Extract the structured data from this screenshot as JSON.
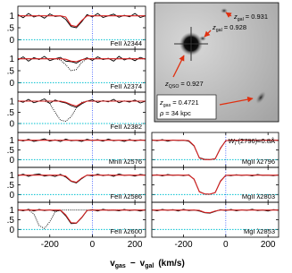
{
  "chart_data": {
    "type": "line",
    "xlabel": {
      "v1": "v",
      "sub1": "gas",
      "minus": "−",
      "v2": "v",
      "sub2": "gal",
      "unit": "(km/s)"
    },
    "xlim": [
      -350,
      250
    ],
    "xticks": [
      -200,
      0,
      200
    ],
    "ylim": [
      -0.4,
      1.4
    ],
    "yticks": [
      0,
      {
        "value": 0.5,
        "label": ".5"
      },
      1
    ],
    "flux_color": "#000000",
    "model_color": "#d62020",
    "zero_color": "#00c0d0",
    "v0_color": "#3050ff",
    "x": [
      -350,
      -325,
      -300,
      -275,
      -250,
      -225,
      -200,
      -175,
      -150,
      -125,
      -100,
      -75,
      -50,
      -25,
      0,
      25,
      50,
      75,
      100,
      125,
      150,
      175,
      200,
      225,
      250
    ],
    "panels": [
      {
        "label": "FeII λ2344",
        "flux": [
          1.05,
          0.92,
          1.1,
          0.95,
          1.02,
          0.9,
          1.08,
          0.97,
          1.0,
          0.85,
          0.55,
          0.5,
          0.75,
          1.05,
          0.95,
          1.1,
          0.93,
          1.0,
          1.07,
          0.94,
          1.02,
          0.96,
          1.1,
          0.93,
          1.0
        ],
        "model": [
          1,
          1,
          1,
          1,
          1,
          1,
          1,
          1,
          1,
          0.95,
          0.6,
          0.55,
          0.8,
          1,
          1,
          1,
          1,
          1,
          1,
          1,
          1,
          1,
          1,
          1,
          1
        ]
      },
      {
        "label": "FeII λ2374",
        "flux": [
          0.95,
          1.08,
          0.9,
          1.05,
          0.97,
          1.1,
          0.92,
          1.0,
          1.06,
          0.9,
          0.88,
          0.82,
          0.95,
          1.04,
          0.93,
          1.08,
          0.97,
          1.02,
          0.9,
          1.1,
          0.95,
          1.03,
          0.92,
          1.06,
          0.98
        ],
        "model": [
          1,
          1,
          1,
          1,
          1,
          1,
          1,
          1,
          1,
          0.98,
          0.9,
          0.88,
          0.96,
          1,
          1,
          1,
          1,
          1,
          1,
          1,
          1,
          1,
          1,
          1,
          1
        ],
        "other": [
          1,
          1,
          1,
          1,
          1,
          1,
          1,
          1,
          0.95,
          0.75,
          0.5,
          0.55,
          0.85,
          1,
          1,
          1,
          1,
          1,
          1,
          1,
          1,
          1,
          1,
          1,
          1
        ]
      },
      {
        "label": "FeII λ2382",
        "flux": [
          1.02,
          0.95,
          1.08,
          0.93,
          1.0,
          1.1,
          0.9,
          1.05,
          0.97,
          0.92,
          0.8,
          0.72,
          0.88,
          1.0,
          1.06,
          0.94,
          1.02,
          0.97,
          1.08,
          0.93,
          1.01,
          0.96,
          1.05,
          0.92,
          1.0
        ],
        "model": [
          1,
          1,
          1,
          1,
          1,
          1,
          1,
          1,
          1,
          0.95,
          0.85,
          0.78,
          0.92,
          1,
          1,
          1,
          1,
          1,
          1,
          1,
          1,
          1,
          1,
          1,
          1
        ],
        "other": [
          1,
          1,
          1,
          1,
          1,
          1,
          0.9,
          0.5,
          0.15,
          0.1,
          0.3,
          0.7,
          0.95,
          1,
          1,
          1,
          1,
          1,
          1,
          1,
          1,
          1,
          1,
          1,
          1
        ]
      },
      {
        "label": "MnII λ2576",
        "flux": [
          1.03,
          0.96,
          1.05,
          0.94,
          1.0,
          1.07,
          0.95,
          1.02,
          0.93,
          1.06,
          0.97,
          1.0,
          0.94,
          1.05,
          0.98,
          1.03,
          0.95,
          1.06,
          0.97,
          1.01,
          0.94,
          1.04,
          0.96,
          1.02,
          0.99
        ],
        "model": [
          1,
          1,
          1,
          1,
          1,
          1,
          1,
          1,
          1,
          1,
          1,
          1,
          1,
          1,
          1,
          1,
          1,
          1,
          1,
          1,
          1,
          1,
          1,
          1,
          1
        ]
      },
      {
        "label": "FeII λ2586",
        "flux": [
          0.97,
          1.05,
          0.94,
          1.02,
          1.06,
          0.95,
          1.0,
          0.93,
          1.04,
          0.9,
          0.68,
          0.6,
          0.82,
          1.0,
          0.96,
          1.05,
          0.97,
          1.02,
          0.94,
          1.06,
          0.98,
          1.01,
          0.95,
          1.04,
          1.0
        ],
        "model": [
          1,
          1,
          1,
          1,
          1,
          1,
          1,
          1,
          1,
          0.95,
          0.7,
          0.63,
          0.85,
          1,
          1,
          1,
          1,
          1,
          1,
          1,
          1,
          1,
          1,
          1,
          1
        ]
      },
      {
        "label": "FeII λ2600",
        "flux": [
          1.02,
          0.96,
          1.04,
          0.95,
          1.03,
          0.97,
          1.01,
          0.94,
          0.98,
          0.7,
          0.3,
          0.32,
          0.6,
          0.97,
          1.02,
          0.95,
          1.04,
          0.98,
          1.0,
          0.96,
          1.03,
          0.97,
          1.01,
          0.95,
          1.02
        ],
        "model": [
          1,
          1,
          1,
          1,
          1,
          1,
          1,
          1,
          1,
          0.75,
          0.35,
          0.33,
          0.62,
          0.98,
          1,
          1,
          1,
          1,
          1,
          1,
          1,
          1,
          1,
          1,
          1
        ],
        "other": [
          1,
          1,
          1,
          0.8,
          0.2,
          0.05,
          0.4,
          0.9,
          1,
          1,
          1,
          1,
          1,
          1,
          1,
          1,
          1,
          1,
          1,
          1,
          1,
          1,
          1,
          1,
          1
        ]
      },
      {
        "label": "MgII λ2796",
        "note": {
          "sym": "W",
          "sub": "r",
          "rest": "(2796)=0.8Å"
        },
        "flux": [
          1.02,
          0.97,
          1.03,
          0.95,
          1.01,
          0.98,
          1.0,
          0.95,
          0.7,
          0.1,
          0.02,
          0.0,
          0.05,
          0.6,
          0.97,
          1.02,
          0.96,
          1.03,
          0.98,
          1.0,
          0.97,
          1.02,
          0.99,
          1.01,
          0.98
        ],
        "model": [
          1,
          1,
          1,
          1,
          1,
          1,
          1,
          0.98,
          0.72,
          0.08,
          0,
          0,
          0.04,
          0.58,
          0.98,
          1,
          1,
          1,
          1,
          1,
          1,
          1,
          1,
          1,
          1
        ]
      },
      {
        "label": "MgII λ2803",
        "flux": [
          0.98,
          1.02,
          0.96,
          1.03,
          0.99,
          1.01,
          0.97,
          1.02,
          0.78,
          0.15,
          0.03,
          0.02,
          0.1,
          0.7,
          0.99,
          0.97,
          1.02,
          0.98,
          1.01,
          0.96,
          1.03,
          0.99,
          1.0,
          0.97,
          1.01
        ],
        "model": [
          1,
          1,
          1,
          1,
          1,
          1,
          1,
          1,
          0.8,
          0.14,
          0.03,
          0.02,
          0.1,
          0.68,
          0.99,
          1,
          1,
          1,
          1,
          1,
          1,
          1,
          1,
          1,
          1
        ]
      },
      {
        "label": "MgI λ2853",
        "flux": [
          1.01,
          0.96,
          1.03,
          0.98,
          1.02,
          0.95,
          1.04,
          0.97,
          1.0,
          0.95,
          0.86,
          0.84,
          0.93,
          1.02,
          0.97,
          1.03,
          0.96,
          1.01,
          0.98,
          1.04,
          0.97,
          1.0,
          0.95,
          1.02,
          0.99
        ],
        "model": [
          1,
          1,
          1,
          1,
          1,
          1,
          1,
          1,
          1,
          0.98,
          0.88,
          0.86,
          0.95,
          1,
          1,
          1,
          1,
          1,
          1,
          1,
          1,
          1,
          1,
          1,
          1
        ]
      }
    ]
  },
  "image": {
    "labels": [
      {
        "sym": "z",
        "sub": "gal",
        "rest": "= 0.931"
      },
      {
        "sym": "z",
        "sub": "gal",
        "rest": "= 0.928"
      },
      {
        "sym": "z",
        "sub": "QSO",
        "rest": "= 0.927"
      }
    ],
    "box": [
      {
        "sym": "z",
        "sub": "gas",
        "rest": "= 0.4721"
      },
      {
        "sym": "ρ",
        "rest": "= 34 kpc"
      }
    ]
  }
}
